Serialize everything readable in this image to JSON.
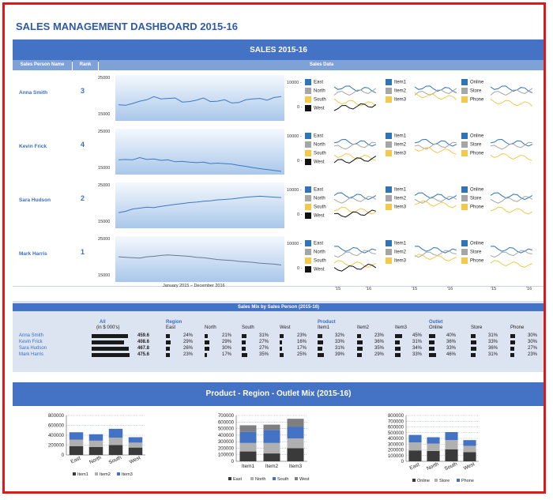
{
  "header": {
    "title": "SALES MANAGEMENT DASHBOARD 2015-16",
    "section_title": "SALES 2015-16",
    "col_name": "Sales Person Name",
    "col_rank": "Rank",
    "col_data": "Sales Data",
    "date_range": "January 2015 – December 2016",
    "x_labels": [
      "'15",
      "'16"
    ]
  },
  "people": [
    {
      "name": "Anna Smith",
      "rank": "3",
      "ymax": "25000",
      "ymin": "15000",
      "trend": [
        18500,
        18400,
        18800,
        19300,
        19600,
        20300,
        19800,
        19900,
        20000,
        19100,
        19200,
        19500,
        20000,
        19200,
        19300,
        19600,
        18900,
        19000,
        19600,
        19800,
        19900,
        19500,
        20100,
        20300
      ]
    },
    {
      "name": "Kevin Frick",
      "rank": "4",
      "ymax": "25000",
      "ymin": "15000",
      "trend": [
        18200,
        18300,
        18200,
        18700,
        18300,
        18400,
        18100,
        18200,
        17800,
        17900,
        17700,
        17600,
        17700,
        17400,
        17500,
        17400,
        17300,
        17000,
        16800,
        16500,
        16300,
        16100,
        15900,
        15700
      ]
    },
    {
      "name": "Sara Hudson",
      "rank": "2",
      "ymax": "25000",
      "ymin": "15000",
      "trend": [
        18400,
        18700,
        19200,
        19400,
        19600,
        19500,
        19800,
        20000,
        20200,
        20400,
        20600,
        20700,
        20900,
        21000,
        21200,
        21300,
        21400,
        21600,
        21800,
        21900,
        22000,
        21900,
        21800,
        21700
      ]
    },
    {
      "name": "Mark Harris",
      "rank": "1",
      "ymax": "25000",
      "ymin": "15000",
      "trend": [
        20500,
        20400,
        20300,
        20200,
        20500,
        20600,
        20800,
        20900,
        20800,
        20700,
        20600,
        20400,
        20300,
        20100,
        19900,
        19800,
        19700,
        19500,
        19400,
        19300,
        19100,
        19000,
        18900,
        18700
      ]
    }
  ],
  "mini_legend": {
    "axis_top": "10000 -",
    "axis_bottom": "0 -",
    "region": [
      "East",
      "North",
      "South",
      "West"
    ],
    "product": [
      "Item1",
      "Item2",
      "Item3"
    ],
    "outlet": [
      "Online",
      "Store",
      "Phone"
    ]
  },
  "colors": {
    "blue": "#2e75b6",
    "gray": "#a6a6a6",
    "gold": "#f2c94c",
    "black": "#111111",
    "header": "#4472c4"
  },
  "mix": {
    "title": "Sales Mix by Sales Person (2015-16)",
    "all_label": "All",
    "all_unit": "(in $ 000's)",
    "region_label": "Region",
    "product_label": "Product",
    "outlet_label": "Outlet",
    "cols": [
      "East",
      "North",
      "South",
      "West",
      "Item1",
      "Item2",
      "Item3",
      "Online",
      "Store",
      "Phone"
    ],
    "rows": [
      {
        "name": "Anna Smith",
        "total": "459.6",
        "vals": [
          "24%",
          "21%",
          "31%",
          "23%",
          "32%",
          "23%",
          "45%",
          "40%",
          "31%",
          "30%"
        ]
      },
      {
        "name": "Kevin Frick",
        "total": "408.6",
        "vals": [
          "29%",
          "29%",
          "27%",
          "16%",
          "33%",
          "36%",
          "31%",
          "36%",
          "33%",
          "30%"
        ]
      },
      {
        "name": "Sara Hudson",
        "total": "467.8",
        "vals": [
          "26%",
          "30%",
          "27%",
          "17%",
          "31%",
          "35%",
          "34%",
          "33%",
          "36%",
          "27%"
        ]
      },
      {
        "name": "Mark Harris",
        "total": "475.6",
        "vals": [
          "23%",
          "17%",
          "35%",
          "25%",
          "39%",
          "29%",
          "33%",
          "46%",
          "31%",
          "23%"
        ]
      }
    ]
  },
  "bottom": {
    "title": "Product - Region - Outlet Mix (2015-16)"
  },
  "chart_data": [
    {
      "type": "bar",
      "stacked": true,
      "categories": [
        "East",
        "North",
        "South",
        "West"
      ],
      "series": [
        {
          "name": "Item1",
          "values": [
            180000,
            160000,
            200000,
            150000
          ]
        },
        {
          "name": "Item2",
          "values": [
            130000,
            130000,
            150000,
            100000
          ]
        },
        {
          "name": "Item3",
          "values": [
            150000,
            130000,
            180000,
            110000
          ]
        }
      ],
      "yticks": [
        "800000",
        "600000",
        "400000",
        "200000",
        "0"
      ],
      "ylim": [
        0,
        800000
      ]
    },
    {
      "type": "bar",
      "stacked": true,
      "categories": [
        "Item1",
        "Item2",
        "Item3"
      ],
      "series": [
        {
          "name": "East",
          "values": [
            150000,
            120000,
            200000
          ]
        },
        {
          "name": "North",
          "values": [
            130000,
            160000,
            150000
          ]
        },
        {
          "name": "South",
          "values": [
            170000,
            200000,
            180000
          ]
        },
        {
          "name": "West",
          "values": [
            100000,
            80000,
            120000
          ]
        }
      ],
      "yticks": [
        "700000",
        "600000",
        "500000",
        "400000",
        "300000",
        "200000",
        "100000",
        "0"
      ],
      "ylim": [
        0,
        700000
      ]
    },
    {
      "type": "bar",
      "stacked": true,
      "categories": [
        "East",
        "North",
        "South",
        "West"
      ],
      "series": [
        {
          "name": "Online",
          "values": [
            190000,
            180000,
            210000,
            160000
          ]
        },
        {
          "name": "Store",
          "values": [
            140000,
            130000,
            160000,
            110000
          ]
        },
        {
          "name": "Phone",
          "values": [
            130000,
            110000,
            140000,
            100000
          ]
        }
      ],
      "yticks": [
        "800000",
        "700000",
        "600000",
        "500000",
        "400000",
        "300000",
        "200000",
        "100000",
        "0"
      ],
      "ylim": [
        0,
        800000
      ]
    }
  ]
}
